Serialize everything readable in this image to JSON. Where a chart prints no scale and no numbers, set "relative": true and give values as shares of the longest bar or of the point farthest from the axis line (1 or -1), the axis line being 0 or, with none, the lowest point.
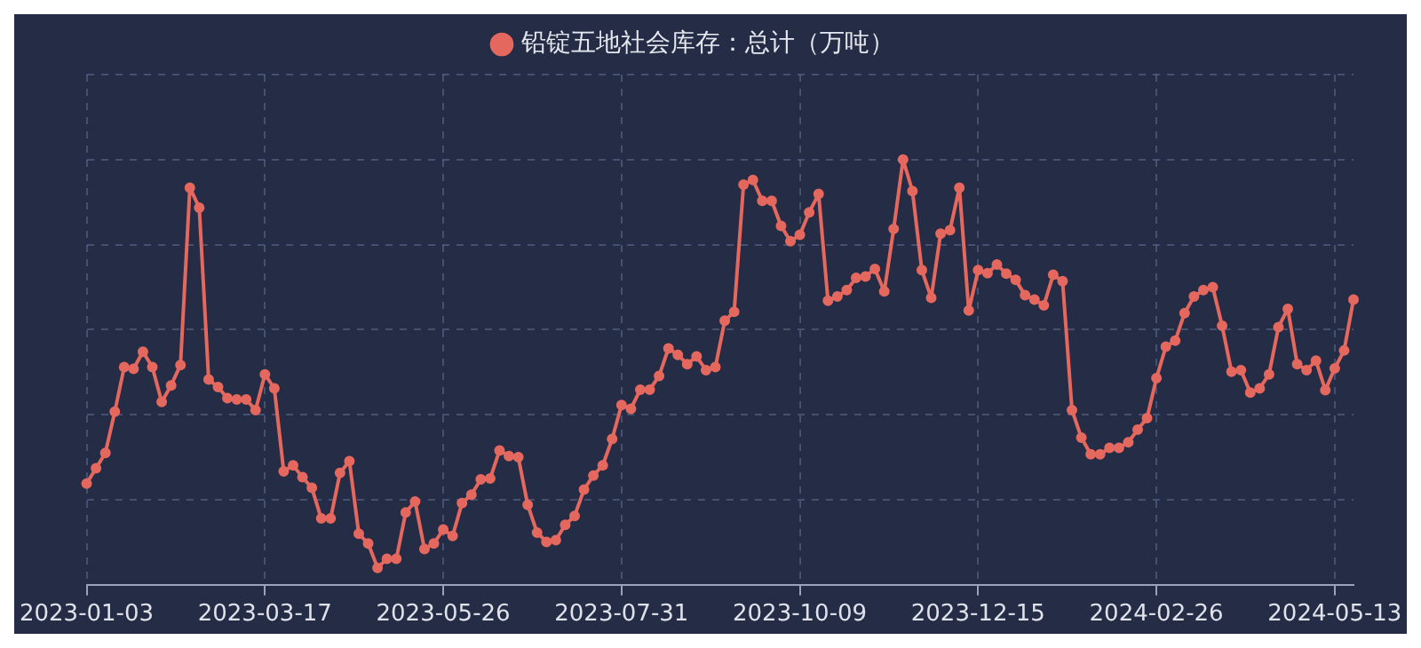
{
  "chart_data": {
    "type": "line",
    "relative": true,
    "legend": "top",
    "grid": true,
    "marker": "circle",
    "line_style": "solid",
    "categories": [
      "2023-01-03",
      null,
      null,
      null,
      null,
      null,
      null,
      null,
      null,
      null,
      null,
      null,
      null,
      null,
      null,
      null,
      null,
      null,
      null,
      "2023-03-17",
      null,
      null,
      null,
      null,
      null,
      null,
      null,
      null,
      null,
      null,
      null,
      null,
      null,
      null,
      null,
      null,
      null,
      null,
      "2023-05-26",
      null,
      null,
      null,
      null,
      null,
      null,
      null,
      null,
      null,
      null,
      null,
      null,
      null,
      null,
      null,
      null,
      null,
      null,
      "2023-07-31",
      null,
      null,
      null,
      null,
      null,
      null,
      null,
      null,
      null,
      null,
      null,
      null,
      null,
      null,
      null,
      null,
      null,
      null,
      "2023-10-09",
      null,
      null,
      null,
      null,
      null,
      null,
      null,
      null,
      null,
      null,
      null,
      null,
      null,
      null,
      null,
      null,
      null,
      null,
      "2023-12-15",
      null,
      null,
      null,
      null,
      null,
      null,
      null,
      null,
      null,
      null,
      null,
      null,
      null,
      null,
      null,
      null,
      null,
      null,
      "2024-02-26",
      null,
      null,
      null,
      null,
      null,
      null,
      null,
      null,
      null,
      null,
      null,
      null,
      null,
      null,
      null,
      null,
      null,
      null,
      "2024-05-13",
      null,
      null
    ],
    "series": [
      {
        "name": "铅锭五地社会库存：总计（万吨）",
        "color": "#e5685f",
        "values": [
          0.238,
          0.274,
          0.31,
          0.407,
          0.512,
          0.508,
          0.548,
          0.512,
          0.43,
          0.469,
          0.517,
          0.934,
          0.887,
          0.483,
          0.465,
          0.439,
          0.436,
          0.436,
          0.411,
          0.495,
          0.462,
          0.267,
          0.281,
          0.253,
          0.228,
          0.156,
          0.156,
          0.263,
          0.291,
          0.12,
          0.097,
          0.04,
          0.061,
          0.061,
          0.17,
          0.196,
          0.084,
          0.097,
          0.13,
          0.115,
          0.192,
          0.212,
          0.248,
          0.25,
          0.316,
          0.303,
          0.3,
          0.188,
          0.123,
          0.101,
          0.105,
          0.141,
          0.162,
          0.224,
          0.257,
          0.281,
          0.343,
          0.423,
          0.414,
          0.459,
          0.459,
          0.491,
          0.556,
          0.541,
          0.519,
          0.537,
          0.505,
          0.512,
          0.621,
          0.642,
          0.941,
          0.952,
          0.903,
          0.903,
          0.844,
          0.808,
          0.823,
          0.876,
          0.919,
          0.668,
          0.678,
          0.693,
          0.722,
          0.725,
          0.743,
          0.69,
          0.837,
          1,
          0.926,
          0.74,
          0.675,
          0.826,
          0.834,
          0.934,
          0.645,
          0.74,
          0.733,
          0.753,
          0.732,
          0.717,
          0.681,
          0.671,
          0.657,
          0.729,
          0.714,
          0.411,
          0.346,
          0.307,
          0.307,
          0.322,
          0.322,
          0.335,
          0.365,
          0.392,
          0.486,
          0.56,
          0.574,
          0.639,
          0.678,
          0.693,
          0.7,
          0.609,
          0.501,
          0.505,
          0.452,
          0.462,
          0.495,
          0.606,
          0.649,
          0.519,
          0.505,
          0.527,
          0.458,
          0.509,
          0.551,
          0.671
        ]
      }
    ]
  }
}
